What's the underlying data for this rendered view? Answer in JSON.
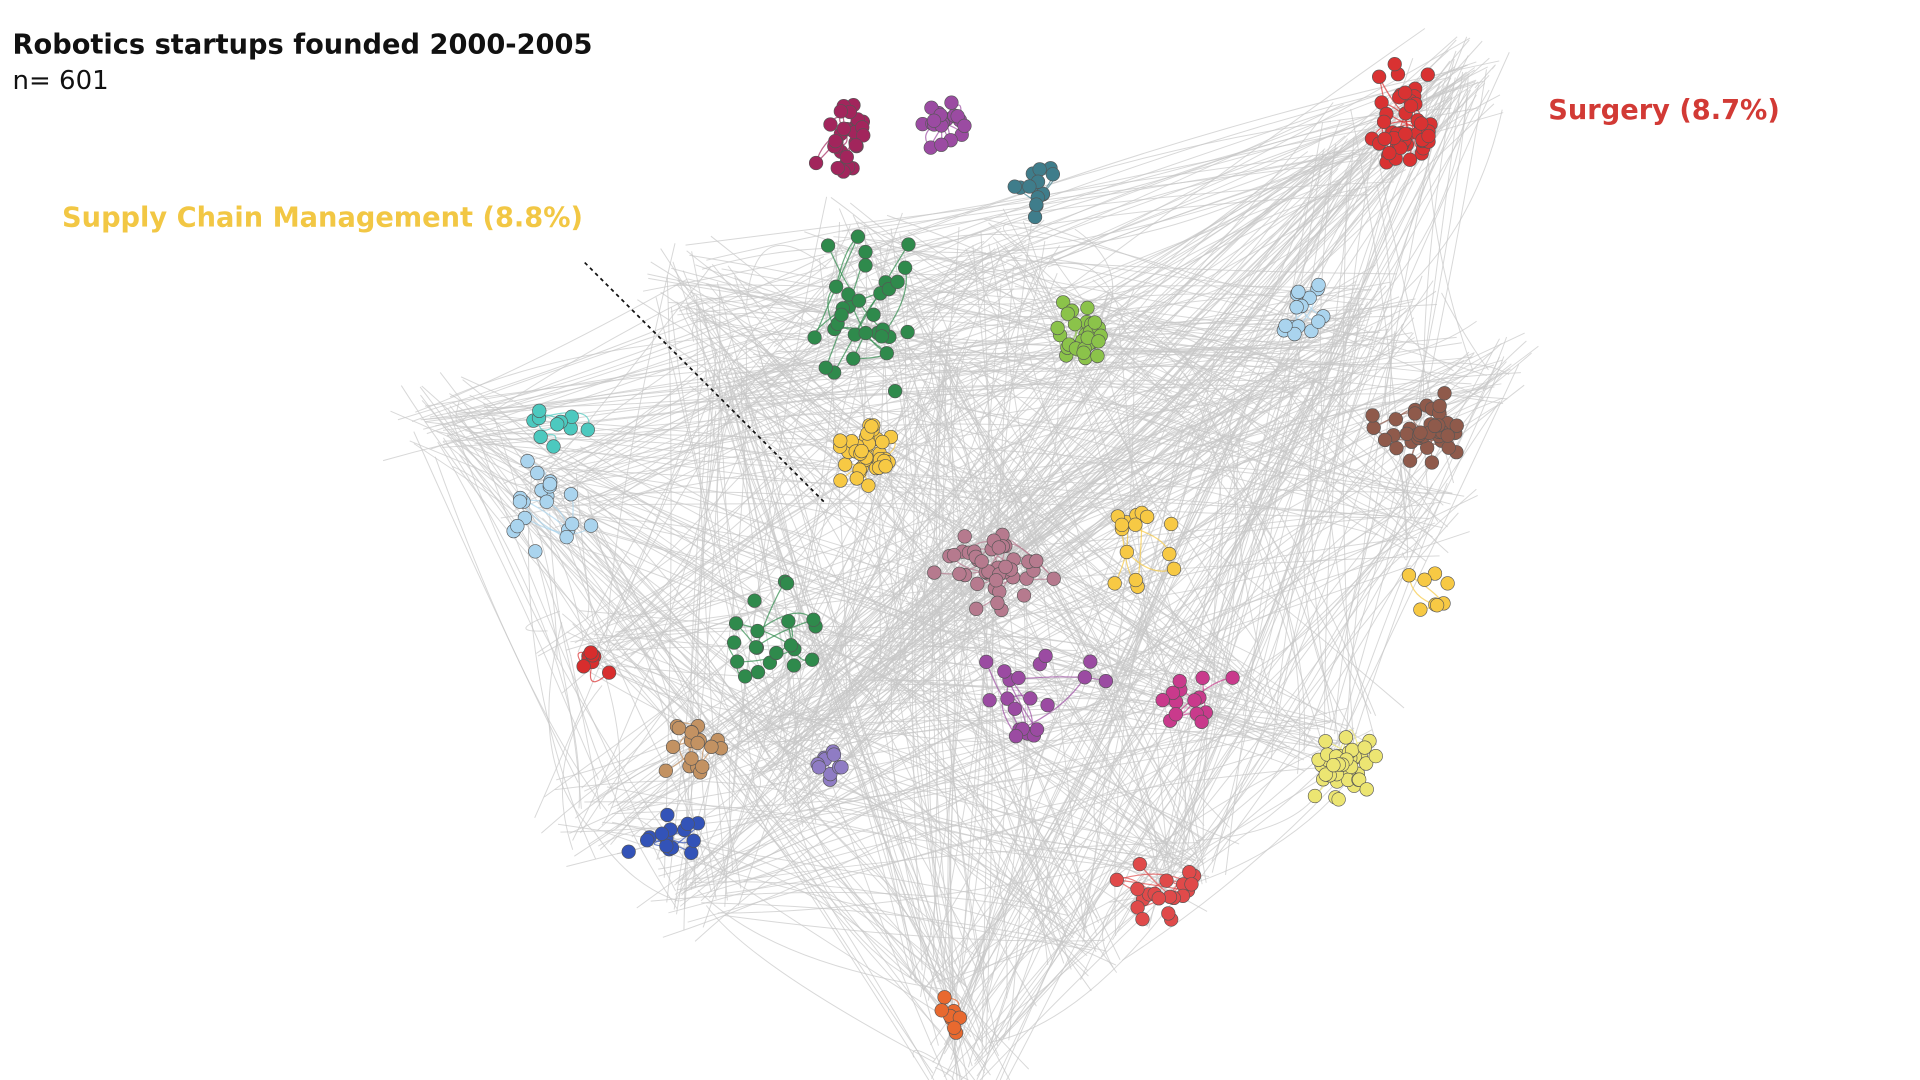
{
  "header": {
    "title": "Robotics startups founded 2000-2005",
    "subtitle": "n= 601"
  },
  "annotations": [
    {
      "text": "Supply Chain Management (8.8%)",
      "color": "#f2c744"
    },
    {
      "text": "Surgery (8.7%)",
      "color": "#d23a35"
    }
  ]
}
